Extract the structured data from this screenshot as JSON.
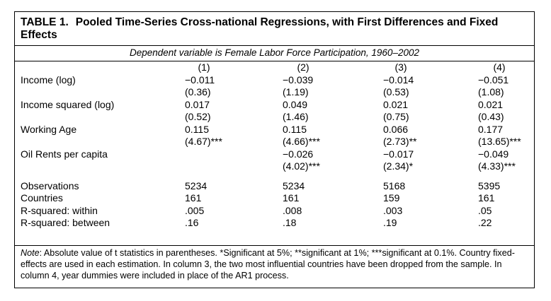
{
  "table": {
    "number": "TABLE 1.",
    "title": "Pooled Time-Series Cross-national Regressions, with First Differences and Fixed Effects",
    "subtitle": "Dependent variable is Female Labor Force Participation, 1960–2002",
    "columns": [
      "(1)",
      "(2)",
      "(3)",
      "(4)"
    ],
    "rows": [
      {
        "label": "Income (log)",
        "values": [
          "−0.011",
          "−0.039",
          "−0.014",
          "−0.051"
        ]
      },
      {
        "label": "",
        "values": [
          "(0.36)",
          "(1.19)",
          "(0.53)",
          "(1.08)"
        ]
      },
      {
        "label": "Income squared (log)",
        "values": [
          "0.017",
          "0.049",
          "0.021",
          "0.021"
        ]
      },
      {
        "label": "",
        "values": [
          "(0.52)",
          "(1.46)",
          "(0.75)",
          "(0.43)"
        ]
      },
      {
        "label": "Working Age",
        "values": [
          "0.115",
          "0.115",
          "0.066",
          "0.177"
        ]
      },
      {
        "label": "",
        "values": [
          "(4.67)***",
          "(4.66)***",
          "(2.73)**",
          "(13.65)***"
        ]
      },
      {
        "label": "Oil Rents per capita",
        "values": [
          "",
          "−0.026",
          "−0.017",
          "−0.049"
        ]
      },
      {
        "label": "",
        "values": [
          "",
          "(4.02)***",
          "(2.34)*",
          "(4.33)***"
        ]
      },
      {
        "label": "Observations",
        "values": [
          "5234",
          "5234",
          "5168",
          "5395"
        ]
      },
      {
        "label": "Countries",
        "values": [
          "161",
          "161",
          "159",
          "161"
        ]
      },
      {
        "label": "R-squared: within",
        "values": [
          ".005",
          ".008",
          ".003",
          ".05"
        ]
      },
      {
        "label": "R-squared: between",
        "values": [
          ".16",
          ".18",
          ".19",
          ".22"
        ]
      }
    ],
    "note_label": "Note",
    "note_text": ": Absolute value of t statistics in parentheses. *Significant at 5%; **significant at 1%; ***significant at 0.1%. Country fixed-effects are used in each estimation. In column 3, the two most influential countries have been dropped from the sample. In column 4, year dummies were included in place of the AR1 process."
  }
}
